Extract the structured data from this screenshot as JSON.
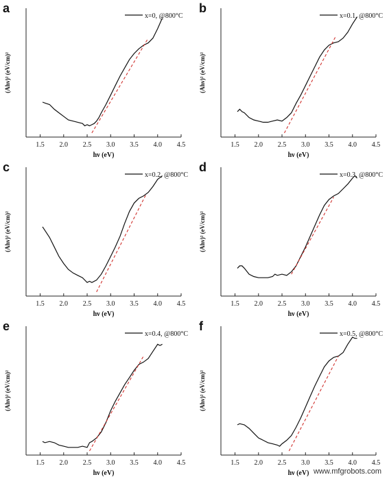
{
  "watermark": "www.mfgrobots.com",
  "colors": {
    "curve": "#111111",
    "fit": "#d0312d",
    "axis": "#222222"
  },
  "chart_data": [
    {
      "type": "line",
      "letter": "a",
      "xlabel": "hν (eV)",
      "ylabel": "(Ahν)² (eV/cm)²",
      "xlim": [
        1.2,
        4.5
      ],
      "ylim": [
        0,
        1
      ],
      "xticks": [
        "1.5",
        "2.0",
        "2.5",
        "3.0",
        "3.5",
        "4.0",
        "4.5"
      ],
      "legend_position": "top-right",
      "series": [
        {
          "name": "x=0, @800°C",
          "style": "solid",
          "x": [
            1.55,
            1.62,
            1.7,
            1.8,
            1.9,
            2.0,
            2.1,
            2.2,
            2.3,
            2.4,
            2.45,
            2.5,
            2.55,
            2.6,
            2.65,
            2.7,
            2.75,
            2.8,
            2.9,
            3.0,
            3.1,
            3.2,
            3.3,
            3.4,
            3.5,
            3.6,
            3.7,
            3.75,
            3.8,
            3.9,
            4.0,
            4.1
          ],
          "y": [
            0.26,
            0.25,
            0.24,
            0.2,
            0.17,
            0.14,
            0.11,
            0.1,
            0.09,
            0.08,
            0.06,
            0.07,
            0.06,
            0.07,
            0.08,
            0.1,
            0.13,
            0.17,
            0.24,
            0.32,
            0.4,
            0.48,
            0.55,
            0.62,
            0.67,
            0.71,
            0.74,
            0.75,
            0.76,
            0.8,
            0.88,
            0.97
          ]
        },
        {
          "name": "",
          "style": "dashed",
          "x": [
            2.6,
            3.8
          ],
          "y": [
            0.0,
            0.8
          ]
        }
      ]
    },
    {
      "type": "line",
      "letter": "b",
      "xlabel": "hν (eV)",
      "ylabel": "(Ahν)² (eV/cm)²",
      "xlim": [
        1.2,
        4.5
      ],
      "ylim": [
        0,
        1
      ],
      "xticks": [
        "1.5",
        "2.0",
        "2.5",
        "3.0",
        "3.5",
        "4.0",
        "4.5"
      ],
      "legend_position": "top-right",
      "series": [
        {
          "name": "x=0.1, @800°C",
          "style": "solid",
          "x": [
            1.55,
            1.6,
            1.65,
            1.7,
            1.8,
            1.9,
            2.0,
            2.1,
            2.2,
            2.3,
            2.4,
            2.5,
            2.6,
            2.7,
            2.8,
            2.9,
            3.0,
            3.1,
            3.2,
            3.3,
            3.4,
            3.5,
            3.6,
            3.7,
            3.8,
            3.9,
            4.0,
            4.1
          ],
          "y": [
            0.18,
            0.2,
            0.18,
            0.17,
            0.13,
            0.11,
            0.1,
            0.09,
            0.09,
            0.1,
            0.11,
            0.1,
            0.13,
            0.17,
            0.25,
            0.32,
            0.4,
            0.48,
            0.56,
            0.64,
            0.7,
            0.74,
            0.76,
            0.77,
            0.8,
            0.85,
            0.92,
            0.98
          ]
        },
        {
          "name": "",
          "style": "dashed",
          "x": [
            2.55,
            3.65
          ],
          "y": [
            0.0,
            0.82
          ]
        }
      ]
    },
    {
      "type": "line",
      "letter": "c",
      "xlabel": "hν (eV)",
      "ylabel": "(Ahν)² (eV/cm)²",
      "xlim": [
        1.2,
        4.5
      ],
      "ylim": [
        0,
        1
      ],
      "xticks": [
        "1.5",
        "2.0",
        "2.5",
        "3.0",
        "3.5",
        "4.0",
        "4.5"
      ],
      "legend_position": "top-right",
      "series": [
        {
          "name": "x=0.2, @800°C",
          "style": "solid",
          "x": [
            1.55,
            1.6,
            1.7,
            1.8,
            1.9,
            2.0,
            2.1,
            2.2,
            2.3,
            2.4,
            2.5,
            2.55,
            2.6,
            2.7,
            2.8,
            2.9,
            3.0,
            3.1,
            3.2,
            3.3,
            3.4,
            3.5,
            3.6,
            3.7,
            3.8,
            3.9,
            4.0,
            4.1
          ],
          "y": [
            0.55,
            0.52,
            0.46,
            0.38,
            0.3,
            0.24,
            0.19,
            0.16,
            0.14,
            0.12,
            0.08,
            0.09,
            0.08,
            0.1,
            0.15,
            0.22,
            0.3,
            0.38,
            0.47,
            0.58,
            0.68,
            0.75,
            0.79,
            0.81,
            0.84,
            0.89,
            0.95,
            0.98
          ]
        },
        {
          "name": "",
          "style": "dashed",
          "x": [
            2.7,
            3.75
          ],
          "y": [
            0.0,
            0.82
          ]
        }
      ]
    },
    {
      "type": "line",
      "letter": "d",
      "xlabel": "hν (eV)",
      "ylabel": "(Ahν)² (eV/cm)²",
      "xlim": [
        1.2,
        4.5
      ],
      "ylim": [
        0,
        1
      ],
      "xticks": [
        "1.5",
        "2.0",
        "2.5",
        "3.0",
        "3.5",
        "4.0",
        "4.5"
      ],
      "legend_position": "top-right",
      "series": [
        {
          "name": "x=0.3, @800°C",
          "style": "solid",
          "x": [
            1.55,
            1.6,
            1.65,
            1.7,
            1.8,
            1.9,
            2.0,
            2.1,
            2.2,
            2.3,
            2.35,
            2.4,
            2.5,
            2.6,
            2.7,
            2.8,
            2.9,
            3.0,
            3.1,
            3.2,
            3.3,
            3.4,
            3.5,
            3.6,
            3.7,
            3.8,
            3.9,
            4.0,
            4.05,
            4.1
          ],
          "y": [
            0.2,
            0.22,
            0.22,
            0.2,
            0.15,
            0.13,
            0.12,
            0.12,
            0.12,
            0.13,
            0.15,
            0.14,
            0.15,
            0.14,
            0.17,
            0.22,
            0.3,
            0.38,
            0.47,
            0.56,
            0.65,
            0.73,
            0.78,
            0.81,
            0.83,
            0.87,
            0.91,
            0.96,
            0.98,
            0.96
          ]
        },
        {
          "name": "",
          "style": "dashed",
          "x": [
            2.7,
            3.6
          ],
          "y": [
            0.15,
            0.8
          ]
        }
      ]
    },
    {
      "type": "line",
      "letter": "e",
      "xlabel": "hν (eV)",
      "ylabel": "(Ahν)² (eV/cm)²",
      "xlim": [
        1.2,
        4.5
      ],
      "ylim": [
        0,
        1
      ],
      "xticks": [
        "1.5",
        "2.0",
        "2.5",
        "3.0",
        "3.5",
        "4.0",
        "4.5"
      ],
      "legend_position": "top-right",
      "series": [
        {
          "name": "x=0.4, @800°C",
          "style": "solid",
          "x": [
            1.55,
            1.6,
            1.7,
            1.8,
            1.9,
            2.0,
            2.1,
            2.2,
            2.3,
            2.4,
            2.5,
            2.55,
            2.6,
            2.7,
            2.8,
            2.9,
            3.0,
            3.1,
            3.2,
            3.3,
            3.4,
            3.5,
            3.6,
            3.7,
            3.8,
            3.9,
            4.0,
            4.05,
            4.1
          ],
          "y": [
            0.08,
            0.07,
            0.08,
            0.07,
            0.05,
            0.04,
            0.03,
            0.03,
            0.03,
            0.04,
            0.03,
            0.07,
            0.08,
            0.11,
            0.16,
            0.24,
            0.34,
            0.42,
            0.49,
            0.56,
            0.62,
            0.68,
            0.73,
            0.75,
            0.78,
            0.84,
            0.9,
            0.89,
            0.9
          ]
        },
        {
          "name": "",
          "style": "dashed",
          "x": [
            2.55,
            3.7
          ],
          "y": [
            0.0,
            0.8
          ]
        }
      ]
    },
    {
      "type": "line",
      "letter": "f",
      "xlabel": "hν (eV)",
      "ylabel": "(Ahν)² (eV/cm)²",
      "xlim": [
        1.2,
        4.5
      ],
      "ylim": [
        0,
        1
      ],
      "xticks": [
        "1.5",
        "2.0",
        "2.5",
        "3.0",
        "3.5",
        "4.0",
        "4.5"
      ],
      "legend_position": "top-right",
      "series": [
        {
          "name": "x=0.5, @800°C",
          "style": "solid",
          "x": [
            1.55,
            1.6,
            1.7,
            1.8,
            1.9,
            2.0,
            2.1,
            2.2,
            2.3,
            2.4,
            2.45,
            2.5,
            2.6,
            2.7,
            2.8,
            2.9,
            3.0,
            3.1,
            3.2,
            3.3,
            3.4,
            3.5,
            3.6,
            3.7,
            3.8,
            3.9,
            4.0,
            4.05,
            4.1
          ],
          "y": [
            0.22,
            0.23,
            0.22,
            0.19,
            0.15,
            0.11,
            0.09,
            0.07,
            0.06,
            0.05,
            0.04,
            0.06,
            0.09,
            0.13,
            0.2,
            0.28,
            0.37,
            0.46,
            0.55,
            0.63,
            0.71,
            0.76,
            0.79,
            0.8,
            0.83,
            0.9,
            0.96,
            0.95,
            0.95
          ]
        },
        {
          "name": "",
          "style": "dashed",
          "x": [
            2.65,
            3.7
          ],
          "y": [
            0.0,
            0.8
          ]
        }
      ]
    }
  ]
}
